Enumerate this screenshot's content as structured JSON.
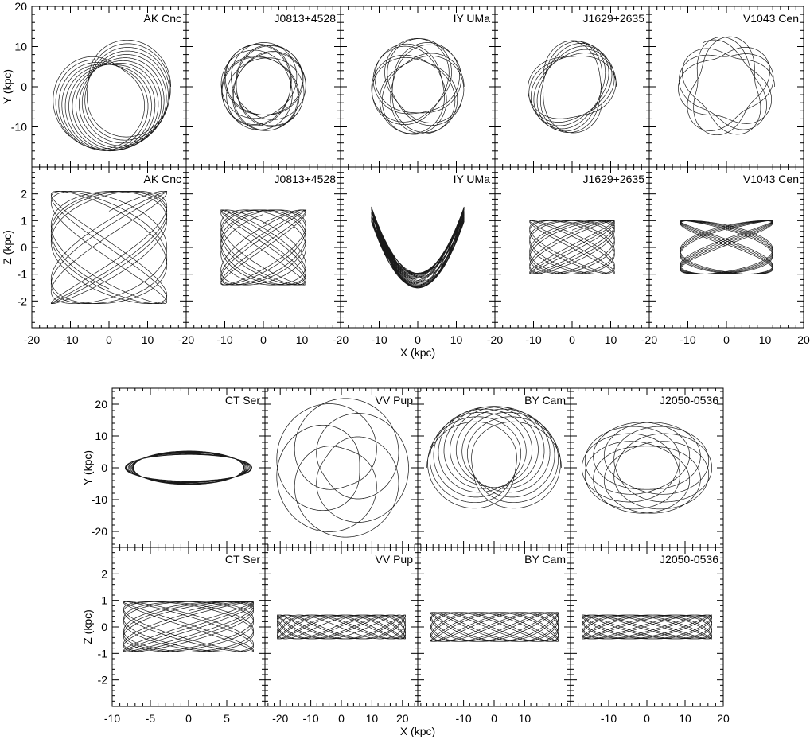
{
  "figure": {
    "line_color": "#1a1a1a",
    "frame_color": "#000000"
  },
  "chart_data": [
    {
      "group": "top",
      "type": "line",
      "x_label": "X (kpc)",
      "x_ticks": [
        -20,
        -10,
        0,
        10,
        20
      ],
      "rows": [
        {
          "row": "Y",
          "y_label": "Y (kpc)",
          "y_ticks": [
            -10,
            0,
            10,
            20
          ],
          "ylim": [
            -20,
            20
          ],
          "panels": [
            {
              "name": "AK Cnc",
              "xlim": [
                -20,
                20
              ],
              "orbit": {
                "plane": "xy",
                "rmin": 5.5,
                "rmax": 16,
                "turns": 12,
                "dphi": 0.97
              }
            },
            {
              "name": "J0813+4528",
              "xlim": [
                -20,
                20
              ],
              "orbit": {
                "plane": "xy",
                "rmin": 7,
                "rmax": 11,
                "turns": 14,
                "dphi": 0.78
              }
            },
            {
              "name": "IY UMa",
              "xlim": [
                -20,
                20
              ],
              "orbit": {
                "plane": "xy",
                "rmin": 6.5,
                "rmax": 12,
                "turns": 14,
                "dphi": 0.71
              }
            },
            {
              "name": "J1629+2635",
              "xlim": [
                -20,
                20
              ],
              "orbit": {
                "plane": "xy",
                "rmin": 7.5,
                "rmax": 11.5,
                "turns": 14,
                "dphi": 0.52
              }
            },
            {
              "name": "V1043 Cen",
              "xlim": [
                -20,
                20
              ],
              "orbit": {
                "plane": "xy",
                "rmin": 7.5,
                "rmax": 12.5,
                "turns": 13,
                "dphi": 0.41
              }
            }
          ]
        },
        {
          "row": "Z",
          "y_label": "Z (kpc)",
          "y_ticks": [
            -2,
            -1,
            0,
            1,
            2
          ],
          "ylim": [
            -3,
            3
          ],
          "panels": [
            {
              "name": "AK Cnc",
              "xlim": [
                -20,
                20
              ],
              "orbit": {
                "plane": "xz",
                "xamp": 15,
                "zamp": 2.1,
                "fx": 1.0,
                "fz": 0.71,
                "cycles": 12,
                "shape": "box"
              }
            },
            {
              "name": "J0813+4528",
              "xlim": [
                -20,
                20
              ],
              "orbit": {
                "plane": "xz",
                "xamp": 11,
                "zamp": 1.4,
                "fx": 1.0,
                "fz": 0.79,
                "cycles": 14,
                "shape": "box"
              }
            },
            {
              "name": "IY UMa",
              "xlim": [
                -20,
                20
              ],
              "orbit": {
                "plane": "xz",
                "xamp": 12,
                "zamp": 1.3,
                "fx": 1.0,
                "fz": 0.5,
                "cycles": 14,
                "shape": "bowl"
              }
            },
            {
              "name": "J1629+2635",
              "xlim": [
                -20,
                20
              ],
              "orbit": {
                "plane": "xz",
                "xamp": 11,
                "zamp": 1.0,
                "fx": 1.0,
                "fz": 0.83,
                "cycles": 14,
                "shape": "box"
              }
            },
            {
              "name": "V1043 Cen",
              "xlim": [
                -20,
                20
              ],
              "orbit": {
                "plane": "xz",
                "xamp": 12,
                "zamp": 1.0,
                "fx": 1.0,
                "fz": 0.67,
                "cycles": 14,
                "shape": "box"
              }
            }
          ]
        }
      ]
    },
    {
      "group": "bottom",
      "type": "line",
      "x_label": "X (kpc)",
      "rows": [
        {
          "row": "Y",
          "y_label": "Y (kpc)",
          "y_ticks": [
            -20,
            -10,
            0,
            10,
            20
          ],
          "ylim": [
            -25,
            25
          ],
          "panels": [
            {
              "name": "CT Ser",
              "xlim": [
                -10,
                10
              ],
              "x_ticks": [
                -10,
                -5,
                0,
                5
              ],
              "orbit": {
                "plane": "xy",
                "ellipse": true,
                "a": 8.3,
                "b": 8.5,
                "a2": 7.2,
                "b2": 5.5,
                "turns": 12
              }
            },
            {
              "name": "VV Pup",
              "xlim": [
                -25,
                25
              ],
              "x_ticks": [
                -20,
                -10,
                0,
                10,
                20
              ],
              "orbit": {
                "plane": "xy",
                "rmin": 6,
                "rmax": 22,
                "turns": 9,
                "dphi": 1.2
              }
            },
            {
              "name": "BY Cam",
              "xlim": [
                -25,
                25
              ],
              "x_ticks": [
                -10,
                0,
                10
              ],
              "orbit": {
                "plane": "xy",
                "rmin": 7,
                "rmax": 22,
                "turns": 10,
                "dphi": 1.05,
                "squash": 0.88
              }
            },
            {
              "name": "J2050-0536",
              "xlim": [
                -20,
                20
              ],
              "x_ticks": [
                -10,
                0,
                10,
                20
              ],
              "orbit": {
                "plane": "xy",
                "rmin": 8,
                "rmax": 17,
                "turns": 12,
                "dphi": 0.9,
                "squash": 0.85
              }
            }
          ]
        },
        {
          "row": "Z",
          "y_label": "Z (kpc)",
          "y_ticks": [
            -2,
            -1,
            0,
            1,
            2
          ],
          "ylim": [
            -3,
            3
          ],
          "panels": [
            {
              "name": "CT Ser",
              "xlim": [
                -10,
                10
              ],
              "x_ticks": [
                -10,
                -5,
                0,
                5
              ],
              "orbit": {
                "plane": "xz",
                "xamp": 8.5,
                "zamp": 0.95,
                "fx": 1.0,
                "fz": 0.83,
                "cycles": 14,
                "shape": "box"
              }
            },
            {
              "name": "VV Pup",
              "xlim": [
                -25,
                25
              ],
              "x_ticks": [
                -20,
                -10,
                0,
                10,
                20
              ],
              "orbit": {
                "plane": "xz",
                "xamp": 21,
                "zamp": 0.45,
                "fx": 1.0,
                "fz": 2.3,
                "cycles": 9,
                "shape": "box"
              }
            },
            {
              "name": "BY Cam",
              "xlim": [
                -25,
                25
              ],
              "x_ticks": [
                -10,
                0,
                10
              ],
              "orbit": {
                "plane": "xz",
                "xamp": 21,
                "zamp": 0.55,
                "fx": 1.0,
                "fz": 1.9,
                "cycles": 10,
                "shape": "box"
              }
            },
            {
              "name": "J2050-0536",
              "xlim": [
                -20,
                20
              ],
              "x_ticks": [
                -10,
                0,
                10,
                20
              ],
              "orbit": {
                "plane": "xz",
                "xamp": 17,
                "zamp": 0.45,
                "fx": 1.0,
                "fz": 1.7,
                "cycles": 12,
                "shape": "box"
              }
            }
          ]
        }
      ]
    }
  ]
}
